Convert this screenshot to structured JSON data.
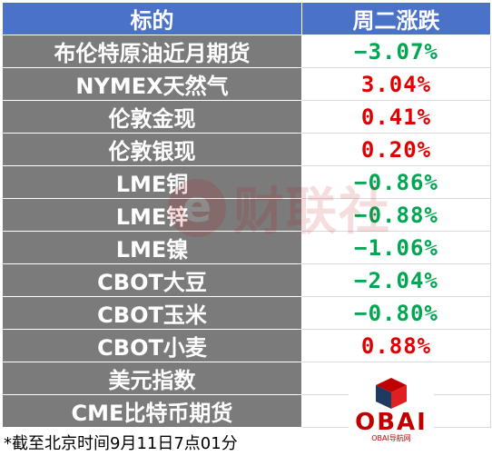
{
  "header": {
    "col_name": "标的",
    "col_change": "周二涨跌"
  },
  "rows": [
    {
      "name": "布伦特原油近月期货",
      "change": "−3.07%",
      "sign": "neg"
    },
    {
      "name": "NYMEX天然气",
      "change": "3.04%",
      "sign": "pos"
    },
    {
      "name": "伦敦金现",
      "change": "0.41%",
      "sign": "pos"
    },
    {
      "name": "伦敦银现",
      "change": "0.20%",
      "sign": "pos"
    },
    {
      "name": "LME铜",
      "change": "−0.86%",
      "sign": "neg"
    },
    {
      "name": "LME锌",
      "change": "−0.88%",
      "sign": "neg"
    },
    {
      "name": "LME镍",
      "change": "−1.06%",
      "sign": "neg"
    },
    {
      "name": "CBOT大豆",
      "change": "−2.04%",
      "sign": "neg"
    },
    {
      "name": "CBOT玉米",
      "change": "−0.80%",
      "sign": "neg"
    },
    {
      "name": "CBOT小麦",
      "change": "0.88%",
      "sign": "pos"
    },
    {
      "name": "美元指数",
      "change": "",
      "sign": "pos"
    },
    {
      "name": "CME比特币期货",
      "change": "",
      "sign": "pos"
    }
  ],
  "footnote": "*截至北京时间9月11日7点01分",
  "watermark": {
    "letter": "e",
    "text": "财联社"
  },
  "logo": {
    "title": "OBAI",
    "subtitle": "OBAI导航网"
  },
  "colors": {
    "header_bg": "#4a72c8",
    "name_bg": "#7b7b7b",
    "negative": "#00a651",
    "positive": "#e00000"
  }
}
